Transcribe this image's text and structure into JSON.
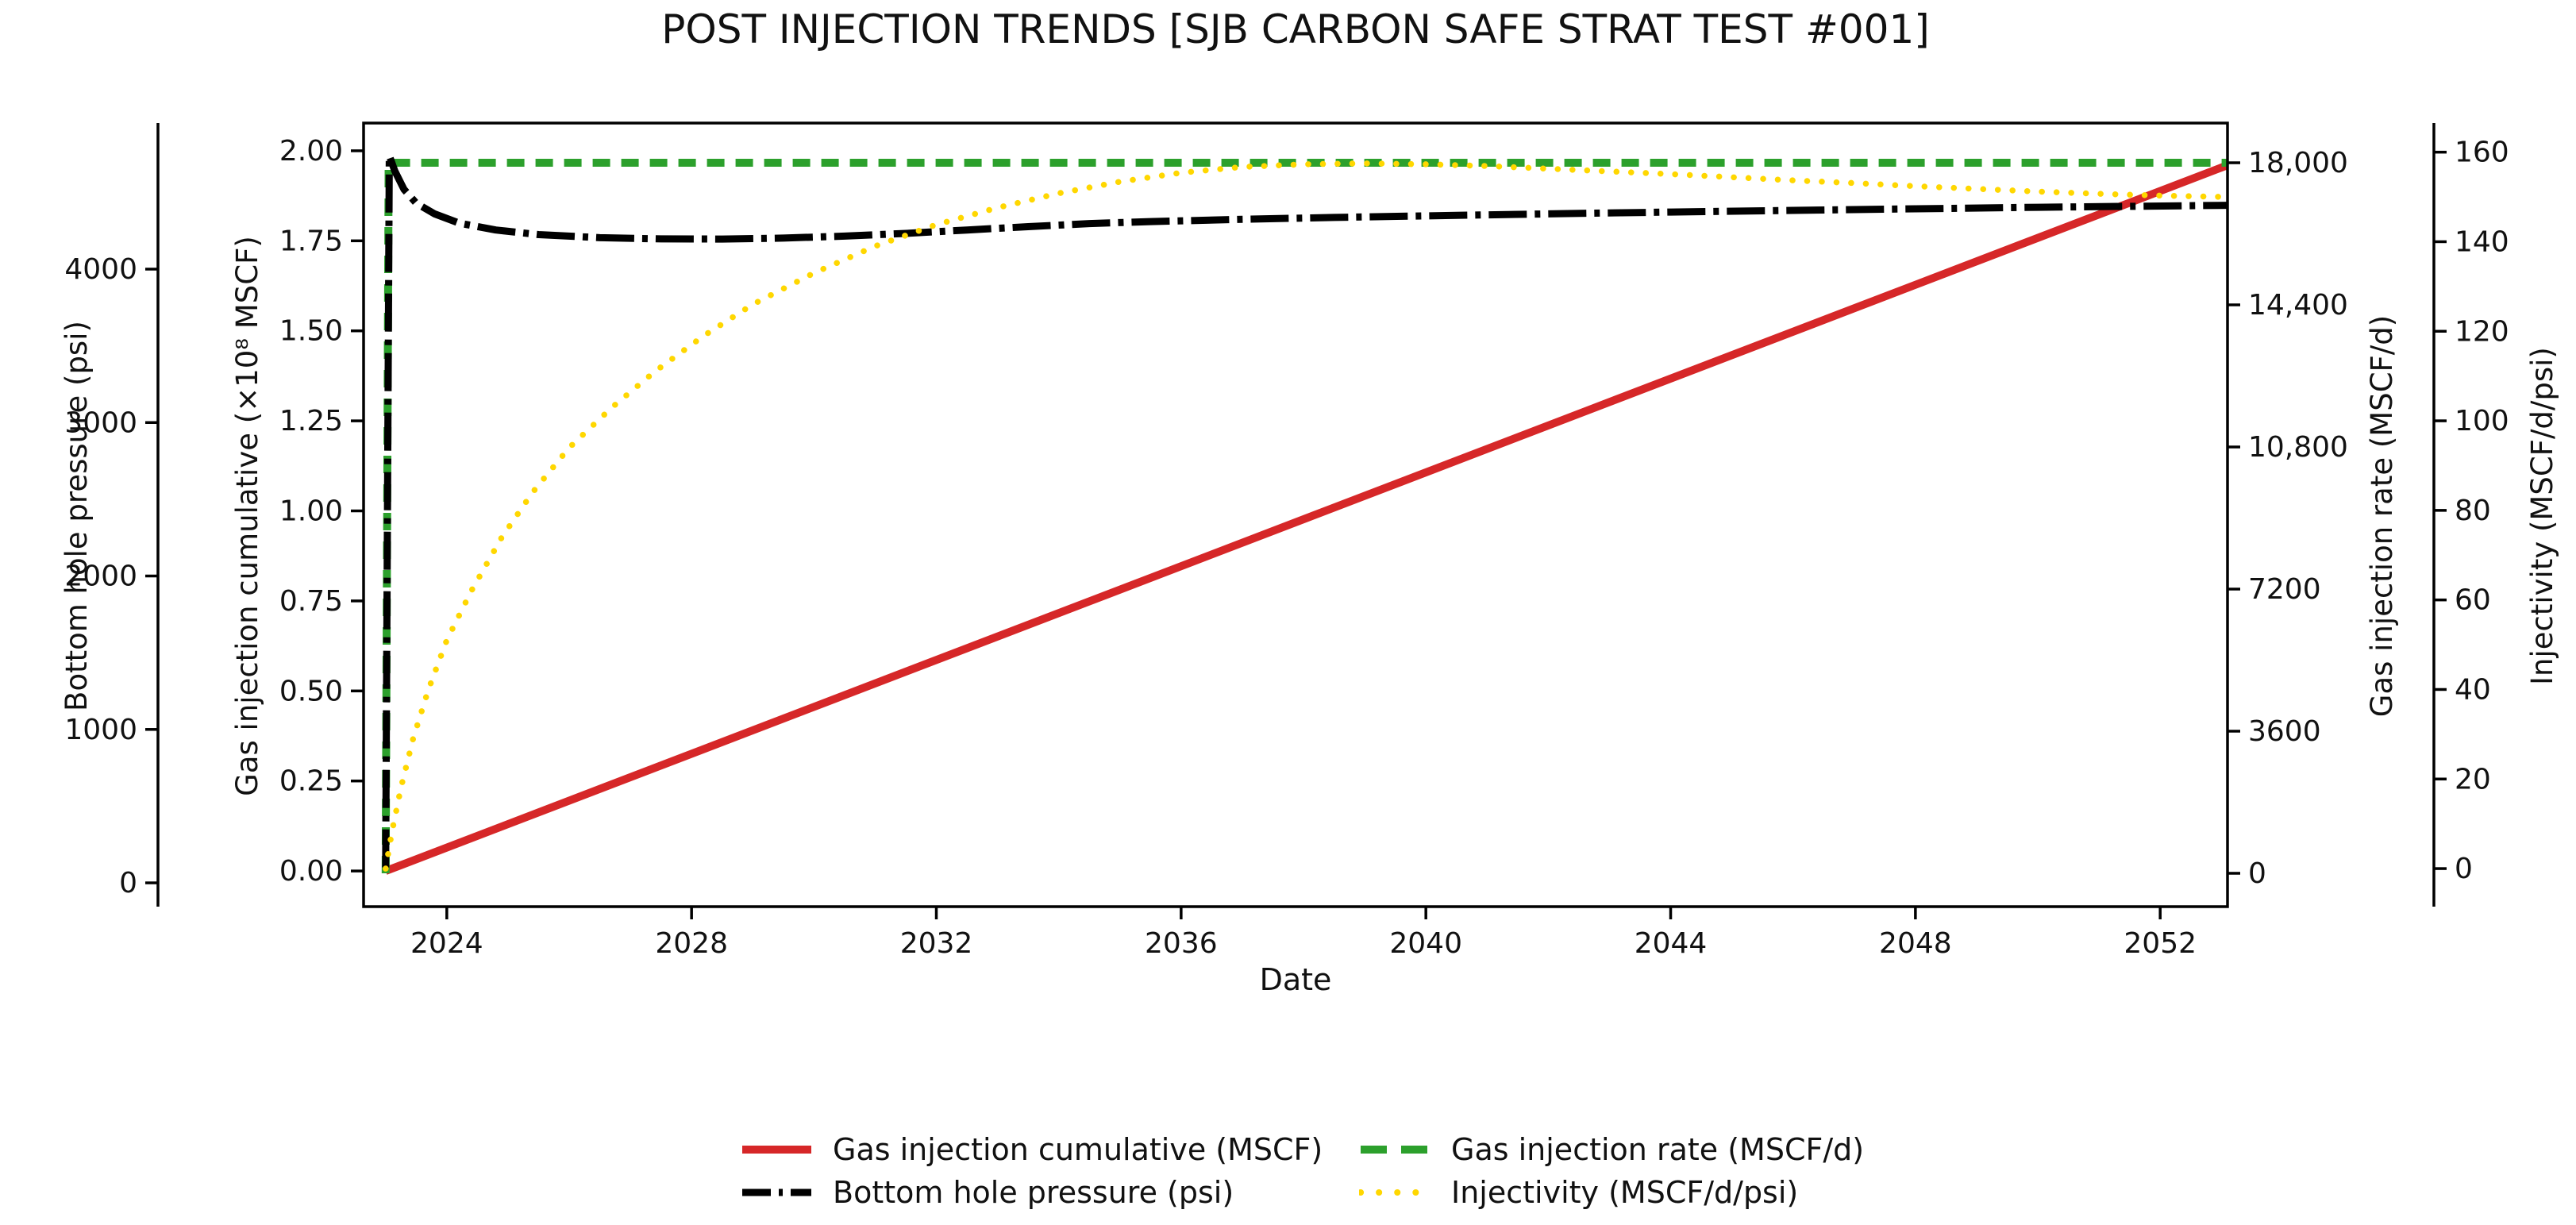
{
  "title": "POST INJECTION TRENDS [SJB CARBON SAFE STRAT TEST #001]",
  "axes": {
    "x": {
      "label": "Date",
      "tick_labels": [
        "2024",
        "2028",
        "2032",
        "2036",
        "2040",
        "2044",
        "2048",
        "2052"
      ],
      "tick_values": [
        2024,
        2028,
        2032,
        2036,
        2040,
        2044,
        2048,
        2052
      ],
      "range": [
        2022.64,
        2053.1
      ]
    },
    "pressure": {
      "label": "Bottom hole pressure (psi)",
      "side": "left-outer",
      "tick_labels": [
        "0",
        "1000",
        "2000",
        "3000",
        "4000"
      ],
      "tick_values": [
        0,
        1000,
        2000,
        3000,
        4000
      ],
      "range": [
        -155,
        4952
      ]
    },
    "cumulative": {
      "label": "Gas injection cumulative (×10⁸ MSCF)",
      "side": "left-inner",
      "tick_labels": [
        "0.00",
        "0.25",
        "0.50",
        "0.75",
        "1.00",
        "1.25",
        "1.50",
        "1.75",
        "2.00"
      ],
      "tick_values": [
        0,
        0.25,
        0.5,
        0.75,
        1.0,
        1.25,
        1.5,
        1.75,
        2.0
      ],
      "range": [
        -0.099,
        2.077
      ]
    },
    "rate": {
      "label": "Gas injection rate (MSCF/d)",
      "side": "right-inner",
      "tick_labels": [
        "0",
        "3600",
        "7200",
        "10,800",
        "14,400",
        "18,000"
      ],
      "tick_values": [
        0,
        3600,
        7200,
        10800,
        14400,
        18000
      ],
      "range": [
        -845,
        19006
      ]
    },
    "injectivity": {
      "label": "Injectivity (MSCF/d/psi)",
      "side": "right-outer",
      "tick_labels": [
        "0",
        "20",
        "40",
        "60",
        "80",
        "100",
        "120",
        "140",
        "160"
      ],
      "tick_values": [
        0,
        20,
        40,
        60,
        80,
        100,
        120,
        140,
        160
      ],
      "range": [
        -8.5,
        166.5
      ]
    }
  },
  "legend": {
    "entries": [
      {
        "id": "gas-injection-cumulative",
        "label": "Gas injection cumulative (MSCF)",
        "color": "#d62728",
        "style": "solid"
      },
      {
        "id": "bottom-hole-pressure",
        "label": "Bottom hole pressure (psi)",
        "color": "#000000",
        "style": "dashdot"
      },
      {
        "id": "gas-injection-rate",
        "label": "Gas injection rate (MSCF/d)",
        "color": "#2ca02c",
        "style": "dashed"
      },
      {
        "id": "injectivity",
        "label": "Injectivity (MSCF/d/psi)",
        "color": "#ffd700",
        "style": "dotted"
      }
    ]
  },
  "chart_data": {
    "type": "line",
    "title": "POST INJECTION TRENDS [SJB CARBON SAFE STRAT TEST #001]",
    "xlabel": "Date",
    "x_range": [
      2022.64,
      2053.1
    ],
    "grid": false,
    "legend_position": "bottom-center",
    "series": [
      {
        "id": "gas-injection-cumulative",
        "name": "Gas injection cumulative (MSCF)",
        "axis": "cumulative",
        "units": "×10⁸ MSCF",
        "color": "#d62728",
        "style": "solid",
        "points": [
          [
            2023.0,
            0.0
          ],
          [
            2053.1,
            1.96
          ]
        ]
      },
      {
        "id": "gas-injection-rate",
        "name": "Gas injection rate (MSCF/d)",
        "axis": "rate",
        "units": "MSCF/d",
        "color": "#2ca02c",
        "style": "dashed",
        "points": [
          [
            2023.0,
            0
          ],
          [
            2023.05,
            18000
          ],
          [
            2053.1,
            18000
          ]
        ]
      },
      {
        "id": "bottom-hole-pressure",
        "name": "Bottom hole pressure (psi)",
        "axis": "pressure",
        "units": "psi",
        "color": "#000000",
        "style": "dashdot",
        "points": [
          [
            2023.0,
            100
          ],
          [
            2023.06,
            4740
          ],
          [
            2023.15,
            4640
          ],
          [
            2023.3,
            4520
          ],
          [
            2023.5,
            4430
          ],
          [
            2023.8,
            4360
          ],
          [
            2024.2,
            4300
          ],
          [
            2024.8,
            4255
          ],
          [
            2025.5,
            4225
          ],
          [
            2026.5,
            4205
          ],
          [
            2027.5,
            4197
          ],
          [
            2028.5,
            4196
          ],
          [
            2029.5,
            4202
          ],
          [
            2030.5,
            4215
          ],
          [
            2031.5,
            4233
          ],
          [
            2032.5,
            4255
          ],
          [
            2033.5,
            4277
          ],
          [
            2034.5,
            4297
          ],
          [
            2035.5,
            4310
          ],
          [
            2037,
            4325
          ],
          [
            2038.5,
            4337
          ],
          [
            2040,
            4347
          ],
          [
            2042,
            4360
          ],
          [
            2044,
            4372
          ],
          [
            2046,
            4383
          ],
          [
            2048,
            4393
          ],
          [
            2050,
            4403
          ],
          [
            2051.5,
            4409
          ],
          [
            2053.1,
            4416
          ]
        ]
      },
      {
        "id": "injectivity",
        "name": "Injectivity (MSCF/d/psi)",
        "axis": "injectivity",
        "units": "MSCF/d/psi",
        "color": "#ffd700",
        "style": "dotted",
        "points": [
          [
            2023.0,
            0
          ],
          [
            2023.1,
            8
          ],
          [
            2023.25,
            18
          ],
          [
            2023.45,
            29
          ],
          [
            2023.7,
            40
          ],
          [
            2024.0,
            51
          ],
          [
            2024.4,
            62
          ],
          [
            2024.9,
            74
          ],
          [
            2025.4,
            84
          ],
          [
            2026,
            94
          ],
          [
            2026.7,
            103
          ],
          [
            2027.4,
            111
          ],
          [
            2028.2,
            119
          ],
          [
            2029,
            126
          ],
          [
            2030,
            133
          ],
          [
            2031,
            139
          ],
          [
            2032,
            143.8
          ],
          [
            2033,
            147.6
          ],
          [
            2034,
            150.8
          ],
          [
            2035,
            153.4
          ],
          [
            2036,
            155.4
          ],
          [
            2037,
            156.7
          ],
          [
            2038,
            157.3
          ],
          [
            2039,
            157.5
          ],
          [
            2040,
            157.3
          ],
          [
            2041,
            156.9
          ],
          [
            2042,
            156.3
          ],
          [
            2043,
            155.7
          ],
          [
            2044,
            155.1
          ],
          [
            2045,
            154.4
          ],
          [
            2046,
            153.7
          ],
          [
            2047,
            153.1
          ],
          [
            2048,
            152.4
          ],
          [
            2049,
            151.8
          ],
          [
            2050,
            151.2
          ],
          [
            2051,
            150.7
          ],
          [
            2052,
            150.3
          ],
          [
            2053.1,
            150.0
          ]
        ]
      }
    ]
  }
}
